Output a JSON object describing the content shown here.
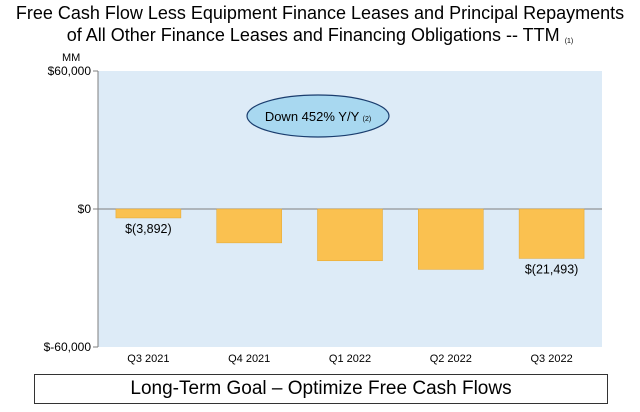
{
  "title": {
    "line1": "Free Cash Flow Less Equipment Finance Leases and Principal Repayments",
    "line2": "of All Other Finance Leases and Financing Obligations -- TTM",
    "footnote": "(1)"
  },
  "chart_data": {
    "type": "bar",
    "ylabel": "MM",
    "ylim": [
      -60000,
      60000
    ],
    "y_ticks": [
      60000,
      0,
      -60000
    ],
    "y_tick_labels": [
      "$60,000",
      "$0",
      "$-60,000"
    ],
    "categories": [
      "Q3 2021",
      "Q4 2021",
      "Q1 2022",
      "Q2 2022",
      "Q3 2022"
    ],
    "values": [
      -3892,
      -14726,
      -22509,
      -26261,
      -21493
    ],
    "data_labels": [
      "$(3,892)",
      "",
      "",
      "",
      "$(21,493)"
    ],
    "grid": false,
    "annotation": {
      "text": "Down 452% Y/Y",
      "footnote": "(2)"
    }
  },
  "colors": {
    "plot_background": "#DDEBF7",
    "bar": "#FAC150",
    "bar_edge": "#E3A62E",
    "callout_fill": "#A8D8F0",
    "callout_stroke": "#1A3D6E"
  },
  "footer": {
    "goal": "Long-Term Goal – Optimize Free Cash Flows"
  }
}
